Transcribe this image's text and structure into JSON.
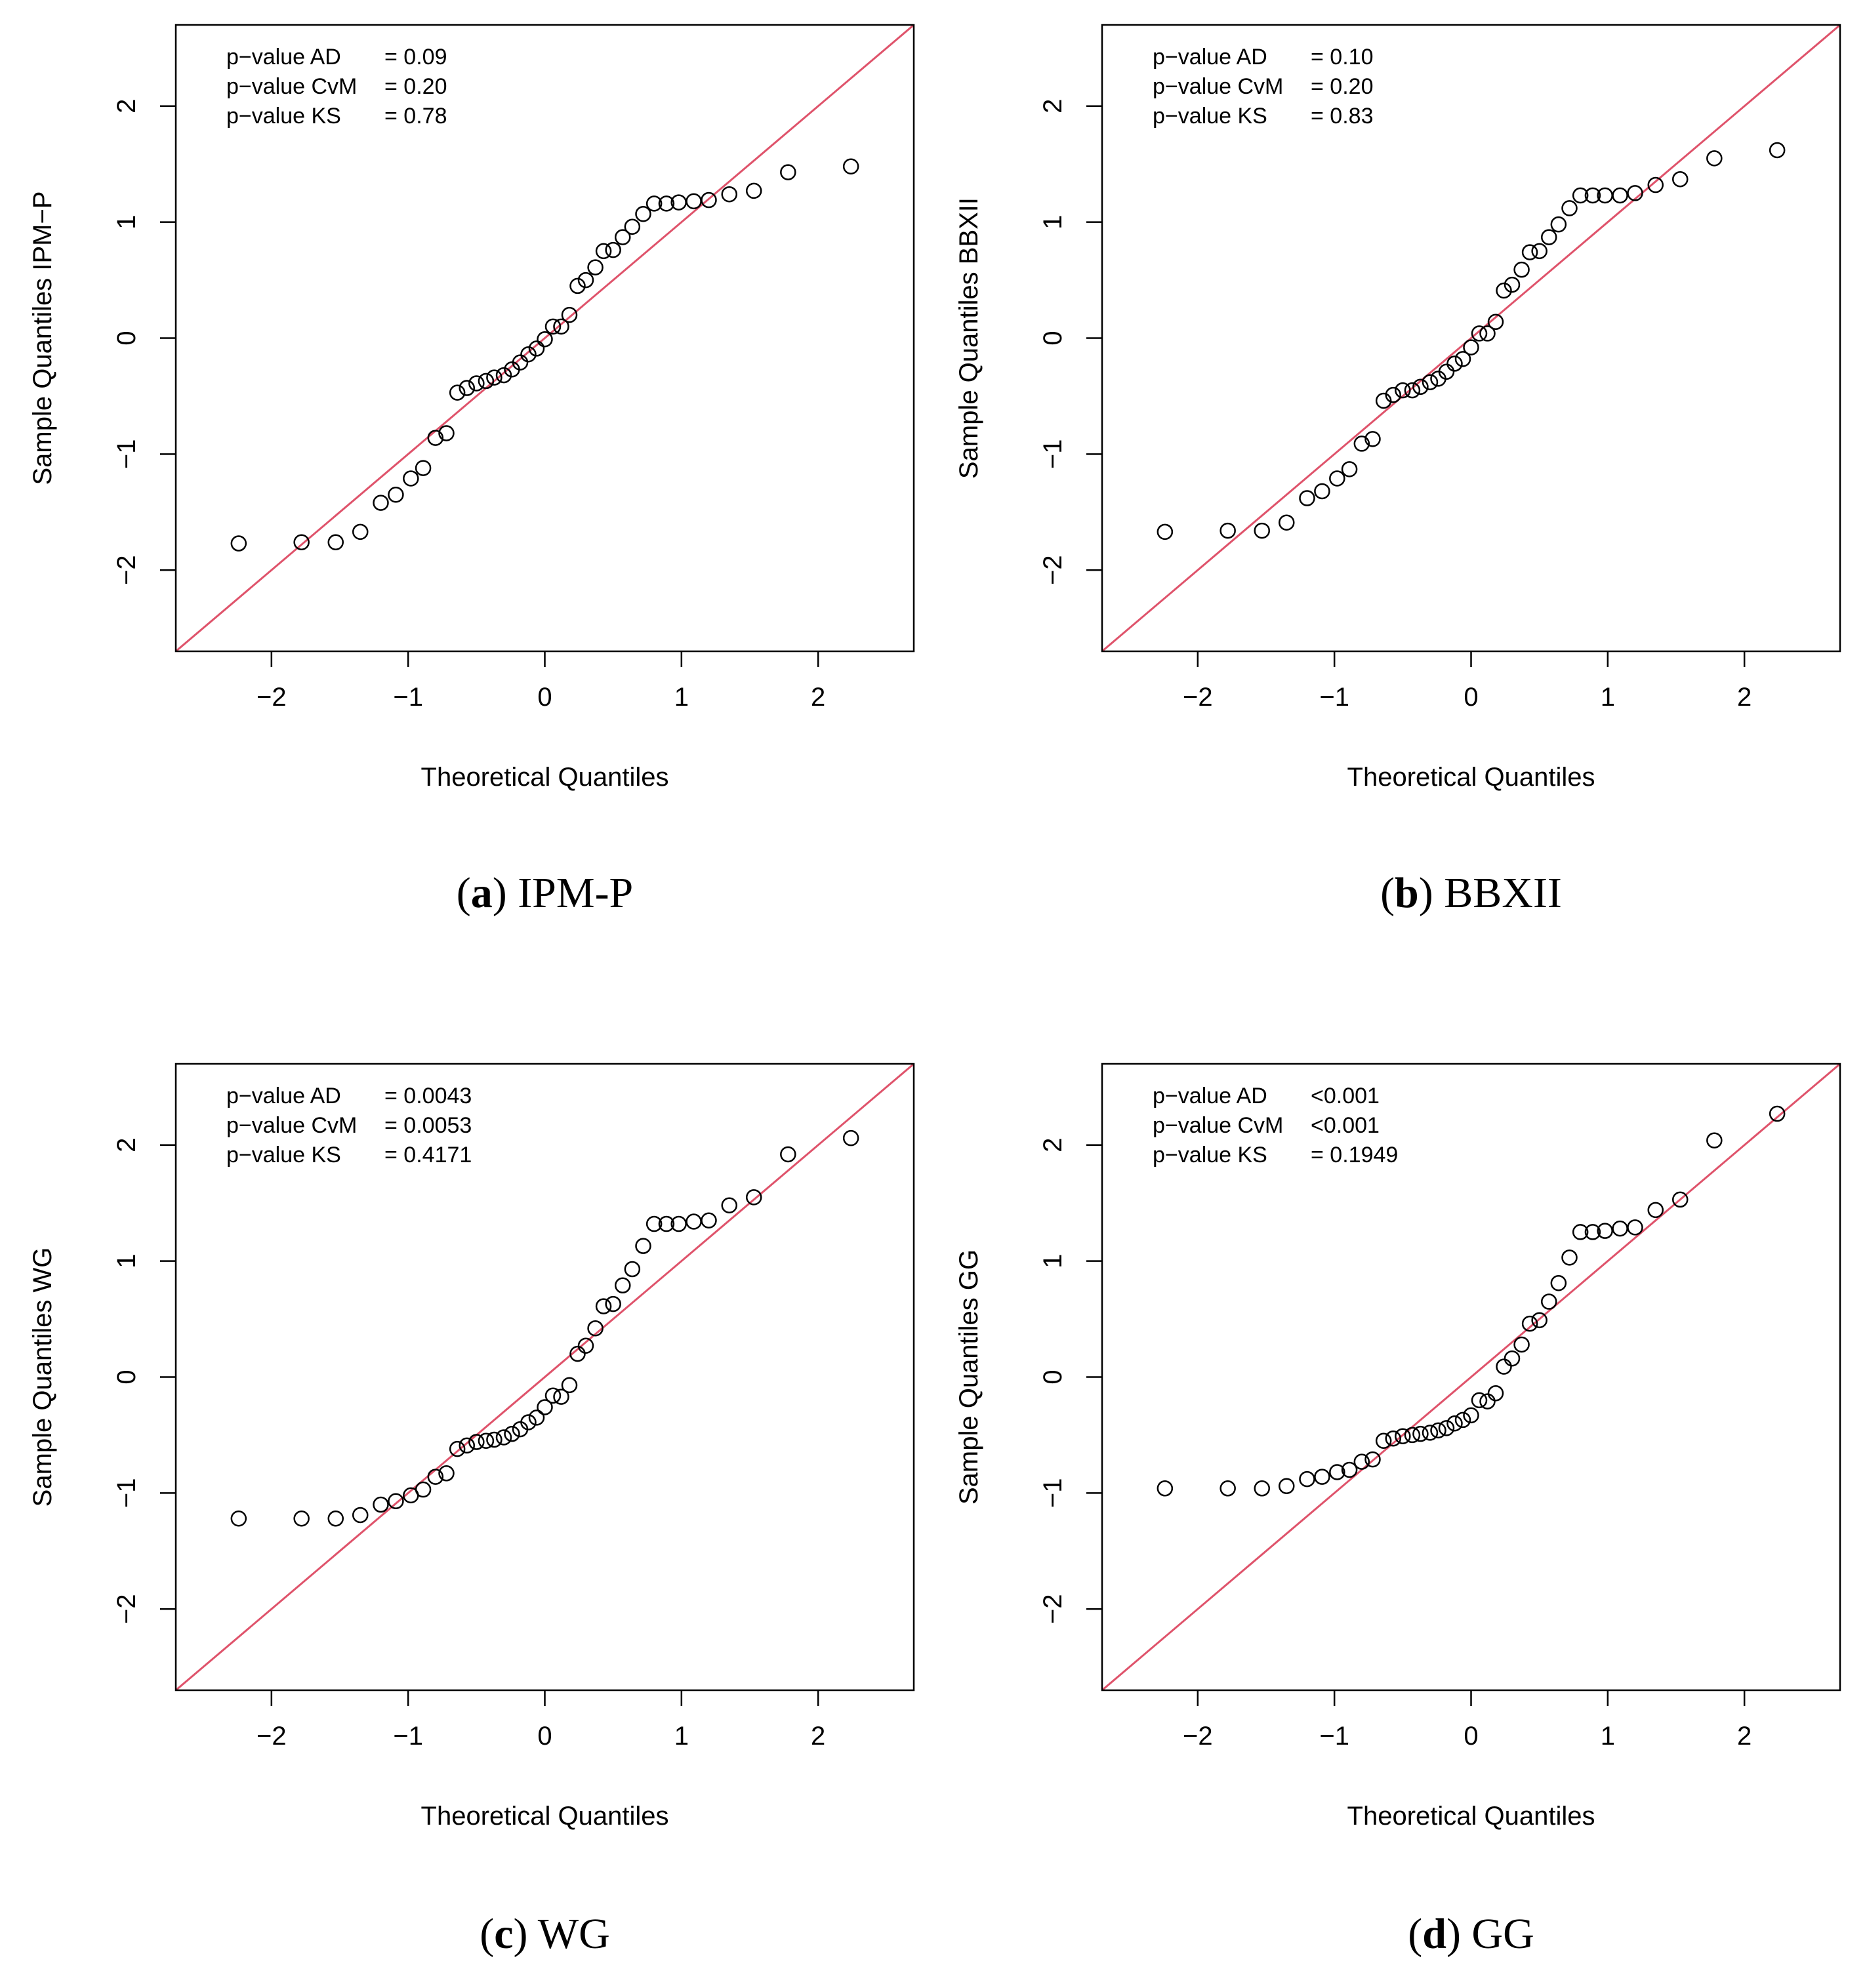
{
  "colors": {
    "ref_line": "#DF536B",
    "points": "#000000",
    "axes": "#000000",
    "background": "#FFFFFF"
  },
  "chart_data": [
    {
      "type": "scatter",
      "title": "",
      "xlabel": "Theoretical Quantiles",
      "ylabel": "Sample Quantiles IPM−P",
      "xlim": [
        -2.7,
        2.7
      ],
      "ylim": [
        -2.7,
        2.7
      ],
      "xticks": [
        -2,
        -1,
        0,
        1,
        2
      ],
      "yticks": [
        -2,
        -1,
        0,
        1,
        2
      ],
      "xtick_labels": [
        "−2",
        "−1",
        "0",
        "1",
        "2"
      ],
      "ytick_labels": [
        "−2",
        "−1",
        "0",
        "1",
        "2"
      ],
      "reference_line": {
        "slope": 1,
        "intercept": 0
      },
      "pvalues": [
        {
          "label": "p−value AD",
          "value": "= 0.09"
        },
        {
          "label": "p−value CvM",
          "value": "= 0.20"
        },
        {
          "label": "p−value KS",
          "value": "= 0.78"
        }
      ],
      "caption": {
        "letter": "a",
        "name": "IPM-P"
      },
      "points": {
        "x": [
          -2.24,
          -1.78,
          -1.53,
          -1.35,
          -1.2,
          -1.09,
          -0.98,
          -0.89,
          -0.8,
          -0.72,
          -0.64,
          -0.57,
          -0.5,
          -0.43,
          -0.37,
          -0.3,
          -0.24,
          -0.18,
          -0.12,
          -0.06,
          0.0,
          0.06,
          0.12,
          0.18,
          0.24,
          0.3,
          0.37,
          0.43,
          0.5,
          0.57,
          0.64,
          0.72,
          0.8,
          0.89,
          0.98,
          1.09,
          1.2,
          1.35,
          1.53,
          1.78,
          2.24
        ],
        "y": [
          -1.77,
          -1.76,
          -1.76,
          -1.67,
          -1.42,
          -1.35,
          -1.21,
          -1.12,
          -0.86,
          -0.82,
          -0.47,
          -0.43,
          -0.39,
          -0.37,
          -0.34,
          -0.32,
          -0.27,
          -0.21,
          -0.14,
          -0.09,
          -0.01,
          0.1,
          0.1,
          0.2,
          0.45,
          0.5,
          0.61,
          0.75,
          0.76,
          0.87,
          0.96,
          1.07,
          1.16,
          1.16,
          1.17,
          1.18,
          1.19,
          1.24,
          1.27,
          1.43,
          1.48
        ]
      }
    },
    {
      "type": "scatter",
      "title": "",
      "xlabel": "Theoretical Quantiles",
      "ylabel": "Sample Quantiles BBXII",
      "xlim": [
        -2.7,
        2.7
      ],
      "ylim": [
        -2.7,
        2.7
      ],
      "xticks": [
        -2,
        -1,
        0,
        1,
        2
      ],
      "yticks": [
        -2,
        -1,
        0,
        1,
        2
      ],
      "xtick_labels": [
        "−2",
        "−1",
        "0",
        "1",
        "2"
      ],
      "ytick_labels": [
        "−2",
        "−1",
        "0",
        "1",
        "2"
      ],
      "reference_line": {
        "slope": 1,
        "intercept": 0
      },
      "pvalues": [
        {
          "label": "p−value AD",
          "value": "= 0.10"
        },
        {
          "label": "p−value CvM",
          "value": "= 0.20"
        },
        {
          "label": "p−value KS",
          "value": "= 0.83"
        }
      ],
      "caption": {
        "letter": "b",
        "name": "BBXII"
      },
      "points": {
        "x": [
          -2.24,
          -1.78,
          -1.53,
          -1.35,
          -1.2,
          -1.09,
          -0.98,
          -0.89,
          -0.8,
          -0.72,
          -0.64,
          -0.57,
          -0.5,
          -0.43,
          -0.37,
          -0.3,
          -0.24,
          -0.18,
          -0.12,
          -0.06,
          0.0,
          0.06,
          0.12,
          0.18,
          0.24,
          0.3,
          0.37,
          0.43,
          0.5,
          0.57,
          0.64,
          0.72,
          0.8,
          0.89,
          0.98,
          1.09,
          1.2,
          1.35,
          1.53,
          1.78,
          2.24
        ],
        "y": [
          -1.67,
          -1.66,
          -1.66,
          -1.59,
          -1.38,
          -1.32,
          -1.21,
          -1.13,
          -0.91,
          -0.87,
          -0.54,
          -0.49,
          -0.45,
          -0.45,
          -0.42,
          -0.38,
          -0.35,
          -0.29,
          -0.22,
          -0.18,
          -0.08,
          0.04,
          0.04,
          0.14,
          0.41,
          0.46,
          0.59,
          0.74,
          0.75,
          0.87,
          0.98,
          1.12,
          1.23,
          1.23,
          1.23,
          1.23,
          1.25,
          1.32,
          1.37,
          1.55,
          1.62
        ]
      }
    },
    {
      "type": "scatter",
      "title": "",
      "xlabel": "Theoretical Quantiles",
      "ylabel": "Sample Quantiles WG",
      "xlim": [
        -2.7,
        2.7
      ],
      "ylim": [
        -2.7,
        2.7
      ],
      "xticks": [
        -2,
        -1,
        0,
        1,
        2
      ],
      "yticks": [
        -2,
        -1,
        0,
        1,
        2
      ],
      "xtick_labels": [
        "−2",
        "−1",
        "0",
        "1",
        "2"
      ],
      "ytick_labels": [
        "−2",
        "−1",
        "0",
        "1",
        "2"
      ],
      "reference_line": {
        "slope": 1,
        "intercept": 0
      },
      "pvalues": [
        {
          "label": "p−value AD",
          "value": "= 0.0043"
        },
        {
          "label": "p−value CvM",
          "value": "= 0.0053"
        },
        {
          "label": "p−value KS",
          "value": "= 0.4171"
        }
      ],
      "caption": {
        "letter": "c",
        "name": "WG"
      },
      "points": {
        "x": [
          -2.24,
          -1.78,
          -1.53,
          -1.35,
          -1.2,
          -1.09,
          -0.98,
          -0.89,
          -0.8,
          -0.72,
          -0.64,
          -0.57,
          -0.5,
          -0.43,
          -0.37,
          -0.3,
          -0.24,
          -0.18,
          -0.12,
          -0.06,
          0.0,
          0.06,
          0.12,
          0.18,
          0.24,
          0.3,
          0.37,
          0.43,
          0.5,
          0.57,
          0.64,
          0.72,
          0.8,
          0.89,
          0.98,
          1.09,
          1.2,
          1.35,
          1.53,
          1.78,
          2.24
        ],
        "y": [
          -1.22,
          -1.22,
          -1.22,
          -1.19,
          -1.1,
          -1.07,
          -1.02,
          -0.97,
          -0.86,
          -0.83,
          -0.62,
          -0.59,
          -0.56,
          -0.55,
          -0.54,
          -0.52,
          -0.49,
          -0.45,
          -0.39,
          -0.35,
          -0.26,
          -0.16,
          -0.17,
          -0.07,
          0.2,
          0.27,
          0.42,
          0.61,
          0.63,
          0.79,
          0.93,
          1.13,
          1.32,
          1.32,
          1.32,
          1.34,
          1.35,
          1.48,
          1.55,
          1.92,
          2.06
        ]
      }
    },
    {
      "type": "scatter",
      "title": "",
      "xlabel": "Theoretical Quantiles",
      "ylabel": "Sample Quantiles GG",
      "xlim": [
        -2.7,
        2.7
      ],
      "ylim": [
        -2.7,
        2.7
      ],
      "xticks": [
        -2,
        -1,
        0,
        1,
        2
      ],
      "yticks": [
        -2,
        -1,
        0,
        1,
        2
      ],
      "xtick_labels": [
        "−2",
        "−1",
        "0",
        "1",
        "2"
      ],
      "ytick_labels": [
        "−2",
        "−1",
        "0",
        "1",
        "2"
      ],
      "reference_line": {
        "slope": 1,
        "intercept": 0
      },
      "pvalues": [
        {
          "label": "p−value AD",
          "value": "<0.001"
        },
        {
          "label": "p−value CvM",
          "value": "<0.001"
        },
        {
          "label": "p−value KS",
          "value": "= 0.1949"
        }
      ],
      "caption": {
        "letter": "d",
        "name": "GG"
      },
      "points": {
        "x": [
          -2.24,
          -1.78,
          -1.53,
          -1.35,
          -1.2,
          -1.09,
          -0.98,
          -0.89,
          -0.8,
          -0.72,
          -0.64,
          -0.57,
          -0.5,
          -0.43,
          -0.37,
          -0.3,
          -0.24,
          -0.18,
          -0.12,
          -0.06,
          0.0,
          0.06,
          0.12,
          0.18,
          0.24,
          0.3,
          0.37,
          0.43,
          0.5,
          0.57,
          0.64,
          0.72,
          0.8,
          0.89,
          0.98,
          1.09,
          1.2,
          1.35,
          1.53,
          1.78,
          2.24
        ],
        "y": [
          -0.96,
          -0.96,
          -0.96,
          -0.94,
          -0.88,
          -0.86,
          -0.82,
          -0.8,
          -0.73,
          -0.71,
          -0.55,
          -0.53,
          -0.51,
          -0.5,
          -0.49,
          -0.48,
          -0.46,
          -0.44,
          -0.4,
          -0.37,
          -0.33,
          -0.2,
          -0.21,
          -0.14,
          0.09,
          0.16,
          0.28,
          0.46,
          0.49,
          0.65,
          0.81,
          1.03,
          1.25,
          1.25,
          1.26,
          1.28,
          1.29,
          1.44,
          1.53,
          2.04,
          2.27
        ]
      }
    }
  ]
}
